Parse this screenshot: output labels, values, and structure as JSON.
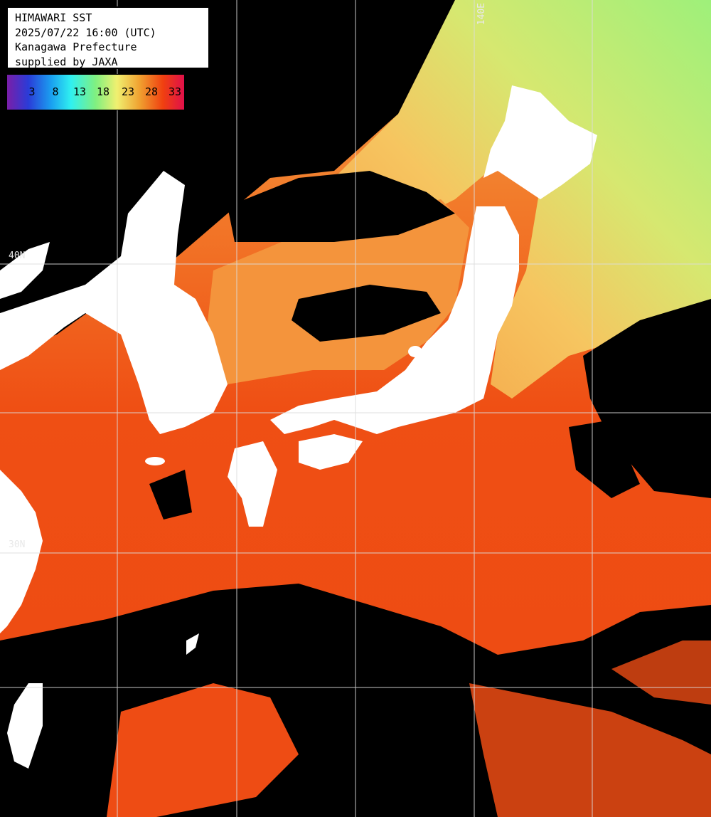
{
  "header": {
    "line1": "HIMAWARI SST",
    "line2": "2025/07/22 16:00 (UTC)",
    "line3": "Kanagawa Prefecture",
    "line4": "supplied by JAXA"
  },
  "colorbar": {
    "ticks": [
      "3",
      "8",
      "13",
      "18",
      "23",
      "28",
      "33"
    ]
  },
  "grid_labels": {
    "lat_top": "40N",
    "lat_mid": "30N",
    "lon_top": "140E"
  },
  "colors": {
    "land": "#ffffff",
    "cloud": "#000000",
    "gridline": "#d8d8d8",
    "sst_warm": "#ef4a12",
    "sst_mid": "#f48a3a",
    "sst_cool": "#f5c060",
    "sst_cold": "#a8f070"
  }
}
